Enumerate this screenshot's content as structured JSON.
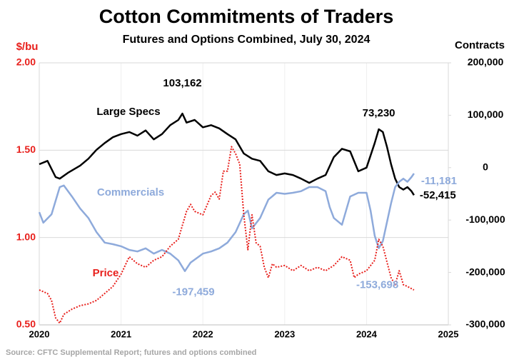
{
  "chart_data": {
    "type": "line",
    "title": "Cotton Commitments of Traders",
    "subtitle": "Futures and Options Combined, July 30, 2024",
    "y_label": "$/bu",
    "y2_label": "Contracts",
    "source": "Source: CFTC Supplemental Report; futures and options combined",
    "xlim": [
      2020,
      2025
    ],
    "xticks": [
      2020,
      2021,
      2022,
      2023,
      2024,
      2025
    ],
    "ylim": [
      0.5,
      2.0
    ],
    "yticks": [
      {
        "value": 0.5,
        "label": "0.50"
      },
      {
        "value": 1.0,
        "label": "1.00"
      },
      {
        "value": 1.5,
        "label": "1.50"
      },
      {
        "value": 2.0,
        "label": "2.00"
      }
    ],
    "y2lim": [
      -300000,
      200000
    ],
    "y2ticks": [
      {
        "value": -300000,
        "label": "-300,000"
      },
      {
        "value": -200000,
        "label": "-200,000"
      },
      {
        "value": -100000,
        "label": "-100,000"
      },
      0,
      {
        "value": 100000,
        "label": "100,000"
      },
      {
        "value": 200000,
        "label": "200,000"
      }
    ],
    "grid": true,
    "series": [
      {
        "name": "Large Specs",
        "color": "#000000",
        "axis": "y2",
        "style": "solid",
        "x": [
          2020.0,
          2020.1,
          2020.2,
          2020.25,
          2020.35,
          2020.5,
          2020.6,
          2020.7,
          2020.8,
          2020.9,
          2021.0,
          2021.1,
          2021.2,
          2021.3,
          2021.4,
          2021.5,
          2021.6,
          2021.7,
          2021.75,
          2021.8,
          2021.9,
          2022.0,
          2022.1,
          2022.2,
          2022.3,
          2022.4,
          2022.5,
          2022.6,
          2022.7,
          2022.8,
          2022.9,
          2023.0,
          2023.1,
          2023.2,
          2023.3,
          2023.4,
          2023.5,
          2023.6,
          2023.7,
          2023.8,
          2023.9,
          2024.0,
          2024.1,
          2024.15,
          2024.2,
          2024.25,
          2024.3,
          2024.35,
          2024.4,
          2024.45,
          2024.5,
          2024.55,
          2024.58
        ],
        "values": [
          6500,
          13000,
          -18000,
          -21000,
          -10000,
          4000,
          17000,
          34000,
          47000,
          58000,
          64000,
          68000,
          61000,
          71000,
          54000,
          64000,
          81000,
          91000,
          103162,
          86000,
          91000,
          77000,
          81000,
          75000,
          64000,
          54000,
          27000,
          17000,
          13000,
          -7000,
          -14000,
          -11000,
          -14000,
          -21000,
          -29000,
          -21000,
          -14000,
          20000,
          36000,
          31000,
          -7000,
          0,
          47000,
          73230,
          68000,
          40000,
          6500,
          -21000,
          -37000,
          -42000,
          -37000,
          -45000,
          -52415
        ]
      },
      {
        "name": "Commercials",
        "color": "#8eaadb",
        "axis": "y2",
        "style": "solid",
        "x": [
          2020.0,
          2020.05,
          2020.15,
          2020.25,
          2020.3,
          2020.4,
          2020.5,
          2020.6,
          2020.7,
          2020.8,
          2020.9,
          2021.0,
          2021.1,
          2021.2,
          2021.3,
          2021.4,
          2021.5,
          2021.6,
          2021.7,
          2021.78,
          2021.85,
          2022.0,
          2022.1,
          2022.2,
          2022.3,
          2022.4,
          2022.5,
          2022.55,
          2022.6,
          2022.7,
          2022.8,
          2022.9,
          2023.0,
          2023.1,
          2023.2,
          2023.3,
          2023.4,
          2023.5,
          2023.55,
          2023.6,
          2023.7,
          2023.8,
          2023.9,
          2024.0,
          2024.05,
          2024.1,
          2024.15,
          2024.2,
          2024.3,
          2024.35,
          2024.4,
          2024.45,
          2024.5,
          2024.55,
          2024.58
        ],
        "values": [
          -85000,
          -105000,
          -89000,
          -37000,
          -34000,
          -55000,
          -78000,
          -96000,
          -123000,
          -143000,
          -146000,
          -150000,
          -157000,
          -160000,
          -154000,
          -164000,
          -157000,
          -164000,
          -177000,
          -197459,
          -181000,
          -164000,
          -160000,
          -154000,
          -143000,
          -123000,
          -89000,
          -82000,
          -116000,
          -96000,
          -61000,
          -48000,
          -50000,
          -48000,
          -45000,
          -37000,
          -37000,
          -45000,
          -75000,
          -96000,
          -109000,
          -55000,
          -48000,
          -48000,
          -82000,
          -130000,
          -153698,
          -140000,
          -68000,
          -37000,
          -27000,
          -21000,
          -27000,
          -18000,
          -11181
        ]
      },
      {
        "name": "Price",
        "color": "#e8201c",
        "axis": "y",
        "style": "dotted",
        "x": [
          2020.0,
          2020.1,
          2020.15,
          2020.2,
          2020.25,
          2020.3,
          2020.4,
          2020.5,
          2020.6,
          2020.7,
          2020.8,
          2020.9,
          2021.0,
          2021.05,
          2021.1,
          2021.2,
          2021.3,
          2021.4,
          2021.5,
          2021.6,
          2021.7,
          2021.75,
          2021.8,
          2021.85,
          2021.9,
          2022.0,
          2022.1,
          2022.15,
          2022.2,
          2022.25,
          2022.3,
          2022.35,
          2022.4,
          2022.45,
          2022.5,
          2022.55,
          2022.6,
          2022.65,
          2022.7,
          2022.75,
          2022.8,
          2022.85,
          2022.9,
          2023.0,
          2023.1,
          2023.2,
          2023.3,
          2023.4,
          2023.5,
          2023.6,
          2023.7,
          2023.8,
          2023.85,
          2023.9,
          2024.0,
          2024.1,
          2024.15,
          2024.2,
          2024.3,
          2024.35,
          2024.4,
          2024.45,
          2024.5,
          2024.58
        ],
        "values": [
          0.7,
          0.68,
          0.64,
          0.54,
          0.51,
          0.56,
          0.59,
          0.61,
          0.62,
          0.64,
          0.68,
          0.72,
          0.79,
          0.84,
          0.89,
          0.85,
          0.83,
          0.87,
          0.89,
          0.95,
          0.99,
          1.07,
          1.15,
          1.19,
          1.15,
          1.13,
          1.24,
          1.26,
          1.22,
          1.38,
          1.38,
          1.52,
          1.48,
          1.42,
          1.13,
          0.93,
          1.13,
          0.97,
          0.95,
          0.83,
          0.77,
          0.85,
          0.83,
          0.84,
          0.81,
          0.84,
          0.81,
          0.83,
          0.81,
          0.84,
          0.89,
          0.87,
          0.77,
          0.79,
          0.81,
          0.87,
          0.99,
          0.95,
          0.77,
          0.73,
          0.81,
          0.73,
          0.72,
          0.7
        ]
      }
    ],
    "annotations": [
      {
        "x": 2021.75,
        "value": 103162,
        "label": "103,162"
      },
      {
        "x": 2024.15,
        "value": 73230,
        "label": "73,230"
      },
      {
        "x": 2021.78,
        "value": -197459,
        "label": "-197,459"
      },
      {
        "x": 2024.15,
        "value": -153698,
        "label": "-153,698"
      },
      {
        "x": 2024.58,
        "value": -11181,
        "label": "-11,181"
      },
      {
        "x": 2024.58,
        "value": -52415,
        "label": "-52,415"
      }
    ]
  }
}
